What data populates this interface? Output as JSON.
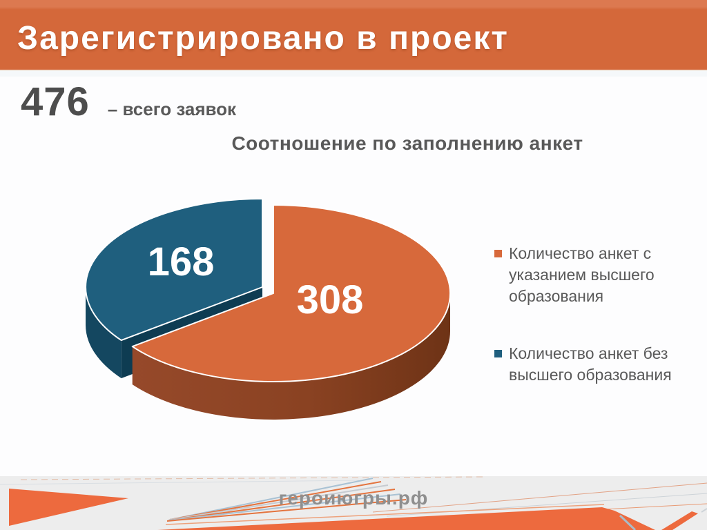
{
  "slide": {
    "header_title": "Зарегистрировано в проект",
    "stat_value": "476",
    "stat_label": "– всего заявок",
    "footer_url": "героиюгры.рф"
  },
  "chart_data": {
    "type": "pie",
    "style": "3d-exploded-pie",
    "title": "Соотношение по заполнению анкет",
    "total": 476,
    "legend_position": "right",
    "slices": [
      {
        "label": "Количество анкет с указанием высшего образования",
        "value": 308,
        "color": "#D7693B",
        "side_color": "#8A4222"
      },
      {
        "label": "Количество анкет без высшего образования",
        "value": 168,
        "color": "#1F5F7E",
        "side_color": "#144760",
        "cut_color": "#0E3C52",
        "exploded": true
      }
    ],
    "data_labels": [
      "308",
      "168"
    ]
  },
  "colors": {
    "header_bg": "#D4683A",
    "header_bg_top": "#DC7950",
    "header_text": "#FFFFFF",
    "text_dark": "#4D4D4D",
    "text_gray": "#595959",
    "footer_bg": "#EDEDED",
    "footer_text": "#8F8F8F",
    "deco_orange": "#ED6A3E"
  }
}
